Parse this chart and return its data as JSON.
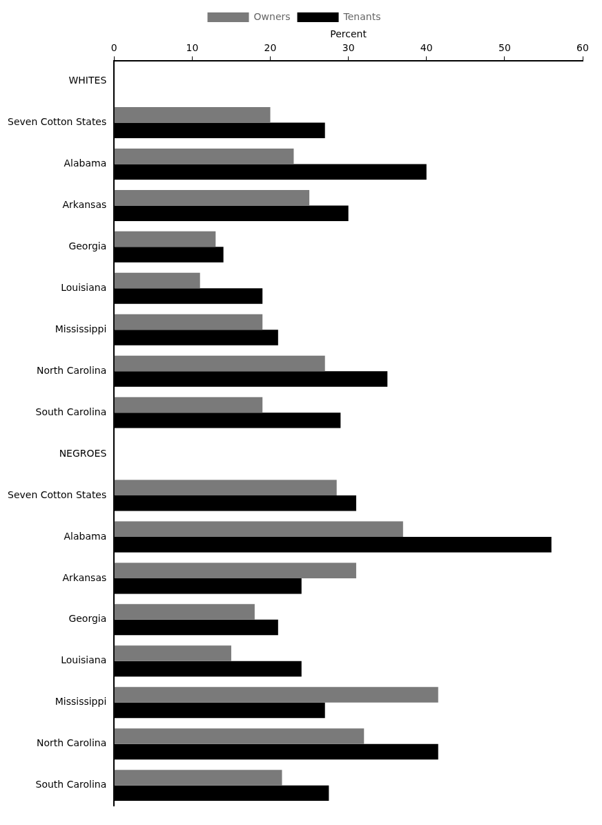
{
  "chart_data": {
    "type": "bar",
    "orientation": "horizontal",
    "xlabel": "Percent",
    "categories": [
      "WHITES",
      "Seven Cotton States",
      "Alabama",
      "Arkansas",
      "Georgia",
      "Louisiana",
      "Mississippi",
      "North Carolina",
      "South Carolina",
      "NEGROES",
      "Seven Cotton States",
      "Alabama",
      "Arkansas",
      "Georgia",
      "Louisiana",
      "Mississippi",
      "North Carolina",
      "South Carolina"
    ],
    "series": [
      {
        "name": "Owners",
        "color": "#7a7a7a",
        "values": [
          null,
          20,
          23,
          25,
          13,
          11,
          19,
          27,
          19,
          null,
          28.5,
          37,
          31,
          18,
          15,
          41.5,
          32,
          21.5
        ]
      },
      {
        "name": "Tenants",
        "color": "#000000",
        "values": [
          null,
          27,
          40,
          30,
          14,
          19,
          21,
          35,
          29,
          null,
          31,
          56,
          24,
          21,
          24,
          27,
          41.5,
          27.5
        ]
      }
    ],
    "xlim": [
      0,
      60
    ],
    "xticks": [
      0,
      10,
      20,
      30,
      40,
      50,
      60
    ],
    "grid": false,
    "legend": "top"
  }
}
